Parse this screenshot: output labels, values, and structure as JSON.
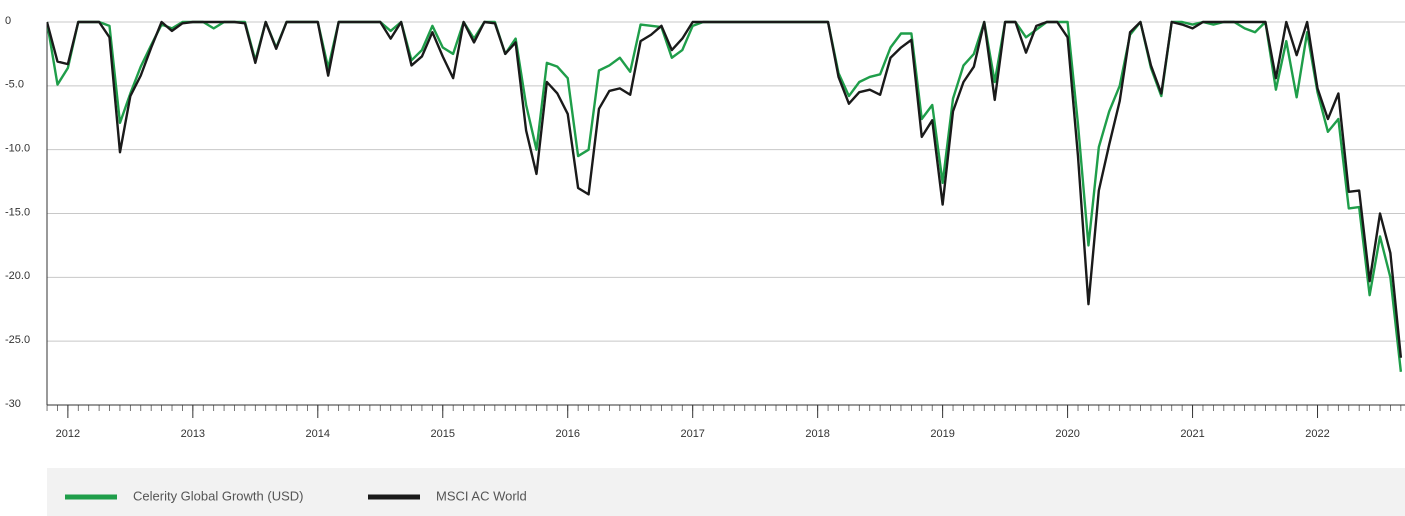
{
  "chart_data": {
    "type": "line",
    "x": [
      2011.833,
      2011.917,
      2012.0,
      2012.083,
      2012.167,
      2012.25,
      2012.333,
      2012.417,
      2012.5,
      2012.583,
      2012.667,
      2012.75,
      2012.833,
      2012.917,
      2013.0,
      2013.083,
      2013.167,
      2013.25,
      2013.333,
      2013.417,
      2013.5,
      2013.583,
      2013.667,
      2013.75,
      2013.833,
      2013.917,
      2014.0,
      2014.083,
      2014.167,
      2014.25,
      2014.333,
      2014.417,
      2014.5,
      2014.583,
      2014.667,
      2014.75,
      2014.833,
      2014.917,
      2015.0,
      2015.083,
      2015.167,
      2015.25,
      2015.333,
      2015.417,
      2015.5,
      2015.583,
      2015.667,
      2015.75,
      2015.833,
      2015.917,
      2016.0,
      2016.083,
      2016.167,
      2016.25,
      2016.333,
      2016.417,
      2016.5,
      2016.583,
      2016.667,
      2016.75,
      2016.833,
      2016.917,
      2017.0,
      2017.083,
      2017.167,
      2017.25,
      2017.333,
      2017.417,
      2017.5,
      2017.583,
      2017.667,
      2017.75,
      2017.833,
      2017.917,
      2018.0,
      2018.083,
      2018.167,
      2018.25,
      2018.333,
      2018.417,
      2018.5,
      2018.583,
      2018.667,
      2018.75,
      2018.833,
      2018.917,
      2019.0,
      2019.083,
      2019.167,
      2019.25,
      2019.333,
      2019.417,
      2019.5,
      2019.583,
      2019.667,
      2019.75,
      2019.833,
      2019.917,
      2020.0,
      2020.083,
      2020.167,
      2020.25,
      2020.333,
      2020.417,
      2020.5,
      2020.583,
      2020.667,
      2020.75,
      2020.833,
      2020.917,
      2021.0,
      2021.083,
      2021.167,
      2021.25,
      2021.333,
      2021.417,
      2021.5,
      2021.583,
      2021.667,
      2021.75,
      2021.833,
      2021.917,
      2022.0,
      2022.083,
      2022.167,
      2022.25,
      2022.333,
      2022.417,
      2022.5,
      2022.583,
      2022.667
    ],
    "series": [
      {
        "name": "Celerity Global Growth (USD)",
        "color": "#1f9e4a",
        "values": [
          0,
          -4.9,
          -3.6,
          0,
          0,
          0,
          -0.3,
          -7.9,
          -5.6,
          -3.5,
          -1.8,
          -0.2,
          -0.5,
          0,
          0,
          0,
          -0.5,
          0,
          0,
          0,
          -3.0,
          0,
          -2.0,
          0,
          0,
          0,
          0,
          -3.6,
          0,
          0,
          0,
          0,
          0,
          -0.7,
          0,
          -3.0,
          -2.2,
          -0.3,
          -2.0,
          -2.5,
          0,
          -1.3,
          0,
          0,
          -2.5,
          -1.3,
          -6.5,
          -10.0,
          -3.2,
          -3.5,
          -4.4,
          -10.5,
          -10.0,
          -3.8,
          -3.4,
          -2.8,
          -3.9,
          -0.2,
          -0.3,
          -0.4,
          -2.8,
          -2.2,
          -0.3,
          0,
          0,
          0,
          0,
          0,
          0,
          0,
          0,
          0,
          0,
          0,
          0,
          0,
          -4.0,
          -5.8,
          -4.7,
          -4.3,
          -4.1,
          -2.0,
          -0.9,
          -0.9,
          -7.6,
          -6.5,
          -12.6,
          -6.0,
          -3.4,
          -2.5,
          0,
          -4.7,
          0,
          0,
          -1.2,
          -0.6,
          0,
          0,
          0,
          -8.0,
          -17.5,
          -9.8,
          -7.0,
          -5.0,
          -1.0,
          0,
          -3.6,
          -5.8,
          0,
          0,
          -0.2,
          0,
          -0.2,
          0,
          0,
          -0.5,
          -0.8,
          0,
          -5.3,
          -1.5,
          -5.9,
          -0.8,
          -5.5,
          -8.6,
          -7.6,
          -14.6,
          -14.5,
          -21.4,
          -16.8,
          -20.0,
          -27.4
        ]
      },
      {
        "name": "MSCI AC World",
        "color": "#1a1a1a",
        "values": [
          0,
          -3.1,
          -3.3,
          0,
          0,
          0,
          -1.2,
          -10.2,
          -5.8,
          -4.2,
          -2.0,
          0,
          -0.7,
          -0.1,
          0,
          0,
          0,
          0,
          0,
          -0.1,
          -3.2,
          0,
          -2.1,
          0,
          0,
          0,
          0,
          -4.2,
          0,
          0,
          0,
          0,
          0,
          -1.3,
          0,
          -3.4,
          -2.7,
          -0.8,
          -2.7,
          -4.4,
          0,
          -1.6,
          0,
          -0.1,
          -2.5,
          -1.6,
          -8.5,
          -11.9,
          -4.7,
          -5.6,
          -7.2,
          -13.0,
          -13.5,
          -6.8,
          -5.4,
          -5.2,
          -5.7,
          -1.5,
          -1.0,
          -0.3,
          -2.2,
          -1.3,
          0,
          0,
          0,
          0,
          0,
          0,
          0,
          0,
          0,
          0,
          0,
          0,
          0,
          0,
          -4.3,
          -6.4,
          -5.5,
          -5.3,
          -5.7,
          -2.8,
          -2.0,
          -1.4,
          -9.0,
          -7.7,
          -14.3,
          -7.0,
          -4.7,
          -3.5,
          0,
          -6.1,
          0,
          0,
          -2.4,
          -0.3,
          0,
          0,
          -1.2,
          -10.5,
          -22.1,
          -13.2,
          -9.6,
          -6.2,
          -0.8,
          0,
          -3.4,
          -5.6,
          0,
          -0.2,
          -0.5,
          0,
          0,
          0,
          0,
          0,
          0,
          0,
          -4.4,
          0,
          -2.6,
          0,
          -5.2,
          -7.6,
          -5.6,
          -13.3,
          -13.2,
          -20.3,
          -15.0,
          -18.1,
          -26.3
        ]
      }
    ],
    "xlim": [
      2011.833,
      2022.7
    ],
    "xticks": [
      2012,
      2013,
      2014,
      2015,
      2016,
      2017,
      2018,
      2019,
      2020,
      2021,
      2022
    ],
    "ylim": [
      -30,
      0
    ],
    "yticks": [
      0,
      {
        "value": -5,
        "label": "-5.0"
      },
      {
        "value": -10,
        "label": "-10.0"
      },
      {
        "value": -15,
        "label": "-15.0"
      },
      {
        "value": -20,
        "label": "-20.0"
      },
      {
        "value": -25,
        "label": "-25.0"
      },
      -30
    ],
    "grid": true
  }
}
